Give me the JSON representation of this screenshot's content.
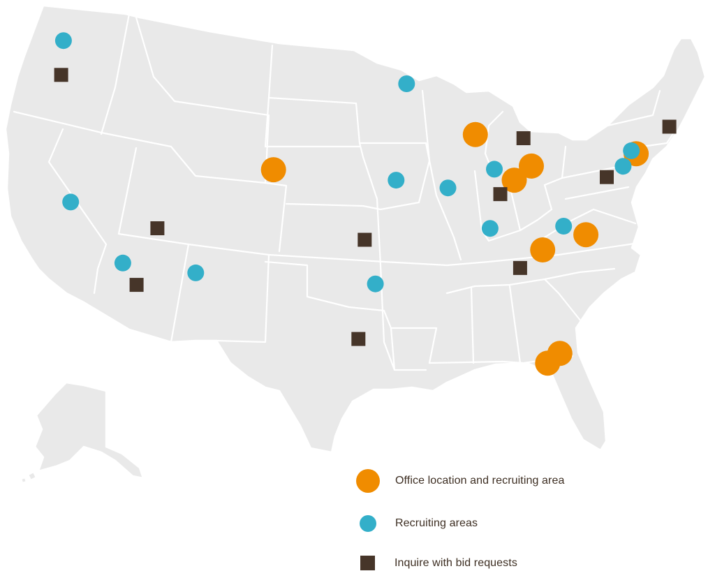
{
  "map": {
    "region": "Contiguous United States with Alaska",
    "colors": {
      "land": "#e9e9e9",
      "state_border": "#ffffff",
      "office": "#f08c00",
      "recruiting": "#33afc9",
      "inquire": "#463529",
      "legend_text": "#3d2e22"
    }
  },
  "legend": {
    "office_label": "Office location and recruiting area",
    "recruiting_label": "Recruiting areas",
    "inquire_label": "Inquire with bid requests"
  },
  "markers": {
    "office": [
      {
        "place": "Denver, CO",
        "lon": -104.99,
        "lat": 39.74
      },
      {
        "place": "Chicago, IL",
        "lon": -87.63,
        "lat": 41.88
      },
      {
        "place": "Cincinnati, OH",
        "lon": -84.51,
        "lat": 39.1
      },
      {
        "place": "Columbus, OH",
        "lon": -82.99,
        "lat": 39.96
      },
      {
        "place": "New York, NY",
        "lon": -74.0,
        "lat": 40.71
      },
      {
        "place": "Raleigh, NC",
        "lon": -78.64,
        "lat": 35.78
      },
      {
        "place": "Greenville, SC",
        "lon": -82.39,
        "lat": 34.85
      },
      {
        "place": "Orlando, FL",
        "lon": -81.38,
        "lat": 28.54
      },
      {
        "place": "Tampa, FL",
        "lon": -82.46,
        "lat": 27.95
      }
    ],
    "recruiting": [
      {
        "place": "Seattle, WA",
        "lon": -122.33,
        "lat": 47.61
      },
      {
        "place": "San Francisco, CA",
        "lon": -122.42,
        "lat": 37.77
      },
      {
        "place": "Los Angeles, CA",
        "lon": -118.24,
        "lat": 34.05
      },
      {
        "place": "Phoenix, AZ",
        "lon": -112.07,
        "lat": 33.45
      },
      {
        "place": "Minneapolis, MN",
        "lon": -93.27,
        "lat": 44.98
      },
      {
        "place": "Kansas City, MO",
        "lon": -94.58,
        "lat": 39.1
      },
      {
        "place": "St. Louis, MO",
        "lon": -90.2,
        "lat": 38.63
      },
      {
        "place": "Indianapolis, IN",
        "lon": -86.16,
        "lat": 39.77
      },
      {
        "place": "Nashville, TN",
        "lon": -86.78,
        "lat": 36.16
      },
      {
        "place": "Greensboro, NC",
        "lon": -80.5,
        "lat": 36.3
      },
      {
        "place": "Philadelphia, PA",
        "lon": -75.17,
        "lat": 39.95
      },
      {
        "place": "Newark, NJ",
        "lon": -74.4,
        "lat": 40.9
      },
      {
        "place": "Dallas, TX",
        "lon": -96.8,
        "lat": 32.78
      }
    ],
    "inquire": [
      {
        "place": "Portland, OR",
        "lon": -122.68,
        "lat": 45.52
      },
      {
        "place": "Las Vegas, NV",
        "lon": -115.14,
        "lat": 36.17
      },
      {
        "place": "San Diego, CA",
        "lon": -117.16,
        "lat": 32.72
      },
      {
        "place": "Oklahoma City, OK",
        "lon": -97.52,
        "lat": 35.47
      },
      {
        "place": "San Antonio, TX",
        "lon": -98.49,
        "lat": 29.42
      },
      {
        "place": "Toledo, OH",
        "lon": -83.54,
        "lat": 41.66
      },
      {
        "place": "Louisville, KY",
        "lon": -85.76,
        "lat": 38.25
      },
      {
        "place": "Baltimore, MD",
        "lon": -76.61,
        "lat": 39.29
      },
      {
        "place": "Boston, MA",
        "lon": -71.06,
        "lat": 42.36
      },
      {
        "place": "Atlanta, GA",
        "lon": -84.39,
        "lat": 33.75
      }
    ]
  }
}
